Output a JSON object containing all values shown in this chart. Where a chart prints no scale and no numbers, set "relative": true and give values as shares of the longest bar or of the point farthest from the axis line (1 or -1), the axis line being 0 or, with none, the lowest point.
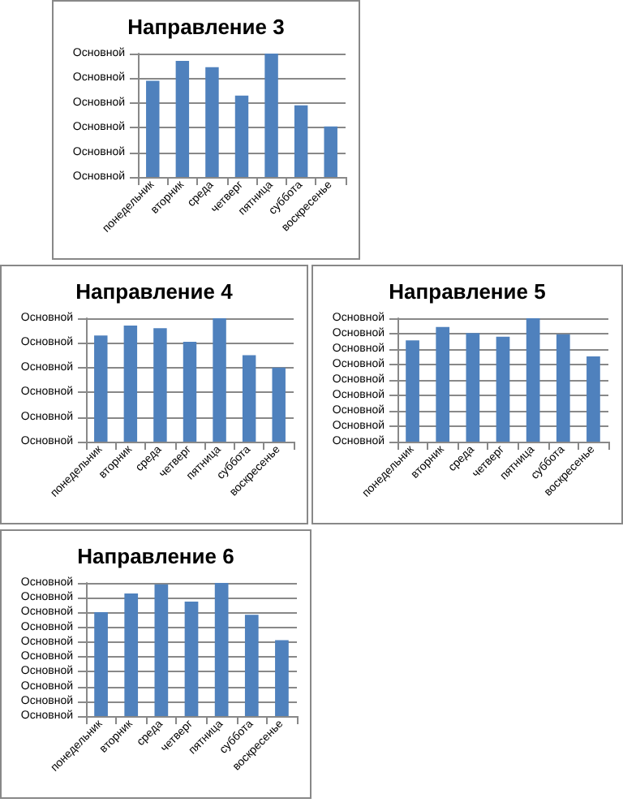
{
  "chart_data": [
    {
      "type": "bar",
      "title": "Направление 3",
      "categories": [
        "понедельник",
        "вторник",
        "среда",
        "четверг",
        "пятница",
        "суббота",
        "воскресенье"
      ],
      "relative": true,
      "values": [
        0.78,
        0.94,
        0.89,
        0.66,
        1,
        0.58,
        0.41
      ],
      "color": "#4f81bd",
      "annotations": [
        "Основной",
        "Основной",
        "Основной",
        "Основной",
        "Основной",
        "Основной"
      ],
      "grid": "y"
    },
    {
      "type": "bar",
      "title": "Направление 4",
      "categories": [
        "понедельник",
        "вторник",
        "среда",
        "четверг",
        "пятница",
        "суббота",
        "воскресенье"
      ],
      "relative": true,
      "values": [
        0.86,
        0.94,
        0.92,
        0.81,
        1,
        0.7,
        0.6
      ],
      "color": "#4f81bd",
      "annotations": [
        "Основной",
        "Основной",
        "Основной",
        "Основной",
        "Основной",
        "Основной"
      ],
      "grid": "y"
    },
    {
      "type": "bar",
      "title": "Направление 5",
      "categories": [
        "понедельник",
        "вторник",
        "среда",
        "четверг",
        "пятница",
        "суббота",
        "воскресенье"
      ],
      "relative": true,
      "values": [
        0.82,
        0.93,
        0.88,
        0.85,
        1,
        0.87,
        0.69
      ],
      "color": "#4f81bd",
      "annotations": [
        "Основной",
        "Основной",
        "Основной",
        "Основной",
        "Основной",
        "Основной",
        "Основной",
        "Основной",
        "Основной"
      ],
      "grid": "y"
    },
    {
      "type": "bar",
      "title": "Направление 6",
      "categories": [
        "понедельник",
        "вторник",
        "среда",
        "четверг",
        "пятница",
        "суббота",
        "воскресенье"
      ],
      "relative": true,
      "values": [
        0.78,
        0.92,
        0.99,
        0.86,
        1,
        0.76,
        0.57
      ],
      "color": "#4f81bd",
      "annotations": [
        "Основной",
        "Основной",
        "Основной",
        "Основной",
        "Основной",
        "Основной",
        "Основной",
        "Основной",
        "Основной",
        "Основной"
      ],
      "grid": "y"
    }
  ]
}
